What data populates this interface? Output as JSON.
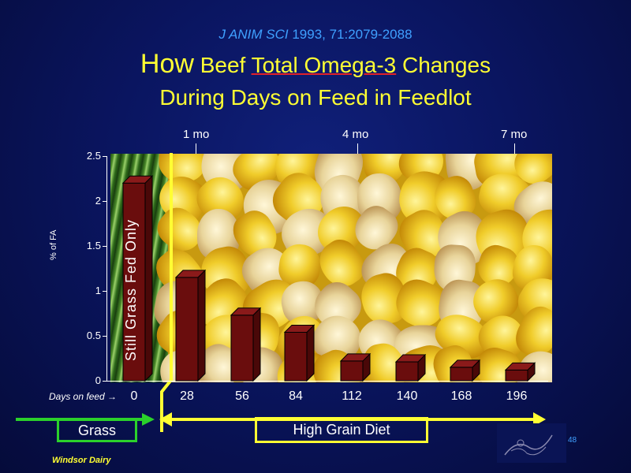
{
  "citation": {
    "journal": "J ANIM SCI",
    "ref": " 1993, 71:2079-2088"
  },
  "title": {
    "how": "How",
    "part1": " Beef ",
    "underlined": "Total Omega-3",
    "part2": " Changes",
    "line2": "During Days on Feed in Feedlot"
  },
  "month_markers": [
    "1 mo",
    "4 mo",
    "7 mo"
  ],
  "days_on_feed_label": "Days on feed →",
  "grass_bar_label": "Still Grass Fed Only",
  "legend": {
    "grass": "Grass",
    "grain": "High  Grain  Diet"
  },
  "footer": "Windsor Dairy",
  "page_number": "48",
  "colors": {
    "bar": "#6a0d0d",
    "title": "#ffff33",
    "citation": "#3fa0ff",
    "grass_arrow": "#2bd12b",
    "grain_arrow": "#ffff33"
  },
  "chart_data": {
    "type": "bar",
    "categories": [
      "0",
      "28",
      "56",
      "84",
      "112",
      "140",
      "168",
      "196"
    ],
    "values": [
      2.2,
      1.15,
      0.73,
      0.54,
      0.22,
      0.21,
      0.15,
      0.12
    ],
    "ylabel": "% of FA",
    "xlabel": "",
    "ylim": [
      0,
      2.5
    ],
    "yticks": [
      "0",
      "0.5",
      "1",
      "1.5",
      "2",
      "2.5"
    ],
    "grid": false,
    "legend": "none"
  }
}
